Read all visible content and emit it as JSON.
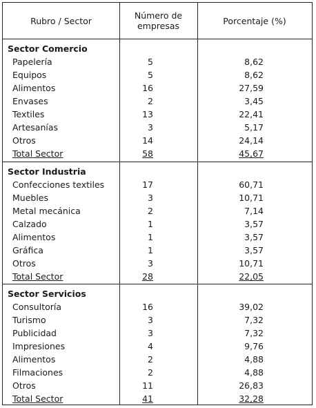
{
  "table": {
    "headers": {
      "rubro": "Rubro / Sector",
      "numero_line1": "Número de",
      "numero_line2": "empresas",
      "porcentaje": "Porcentaje (%)"
    },
    "sections": [
      {
        "title": "Sector Comercio",
        "rows": [
          {
            "name": "Papelería",
            "num": "5",
            "pct": "8,62"
          },
          {
            "name": "Equipos",
            "num": "5",
            "pct": "8,62"
          },
          {
            "name": "Alimentos",
            "num": "16",
            "pct": "27,59"
          },
          {
            "name": "Envases",
            "num": "2",
            "pct": "3,45"
          },
          {
            "name": "Textiles",
            "num": "13",
            "pct": "22,41"
          },
          {
            "name": "Artesanías",
            "num": "3",
            "pct": "5,17"
          },
          {
            "name": "Otros",
            "num": "14",
            "pct": "24,14"
          }
        ],
        "total": {
          "name": "Total Sector",
          "num": "58",
          "pct": "45,67"
        }
      },
      {
        "title": "Sector Industria",
        "rows": [
          {
            "name": "Confecciones textiles",
            "num": "17",
            "pct": "60,71"
          },
          {
            "name": "Muebles",
            "num": "3",
            "pct": "10,71"
          },
          {
            "name": "Metal mecánica",
            "num": "2",
            "pct": "7,14"
          },
          {
            "name": "Calzado",
            "num": "1",
            "pct": "3,57"
          },
          {
            "name": "Alimentos",
            "num": "1",
            "pct": "3,57"
          },
          {
            "name": "Gráfica",
            "num": "1",
            "pct": "3,57"
          },
          {
            "name": "Otros",
            "num": "3",
            "pct": "10,71"
          }
        ],
        "total": {
          "name": "Total Sector",
          "num": "28",
          "pct": "22,05"
        }
      },
      {
        "title": "Sector Servicios",
        "rows": [
          {
            "name": "Consultoría",
            "num": "16",
            "pct": "39,02"
          },
          {
            "name": "Turismo",
            "num": "3",
            "pct": "7,32"
          },
          {
            "name": "Publicidad",
            "num": "3",
            "pct": "7,32"
          },
          {
            "name": "Impresiones",
            "num": "4",
            "pct": "9,76"
          },
          {
            "name": "Alimentos",
            "num": "2",
            "pct": "4,88"
          },
          {
            "name": "Filmaciones",
            "num": "2",
            "pct": "4,88"
          },
          {
            "name": "Otros",
            "num": "11",
            "pct": "26,83"
          }
        ],
        "total": {
          "name": "Total Sector",
          "num": "41",
          "pct": "32,28"
        }
      }
    ]
  }
}
